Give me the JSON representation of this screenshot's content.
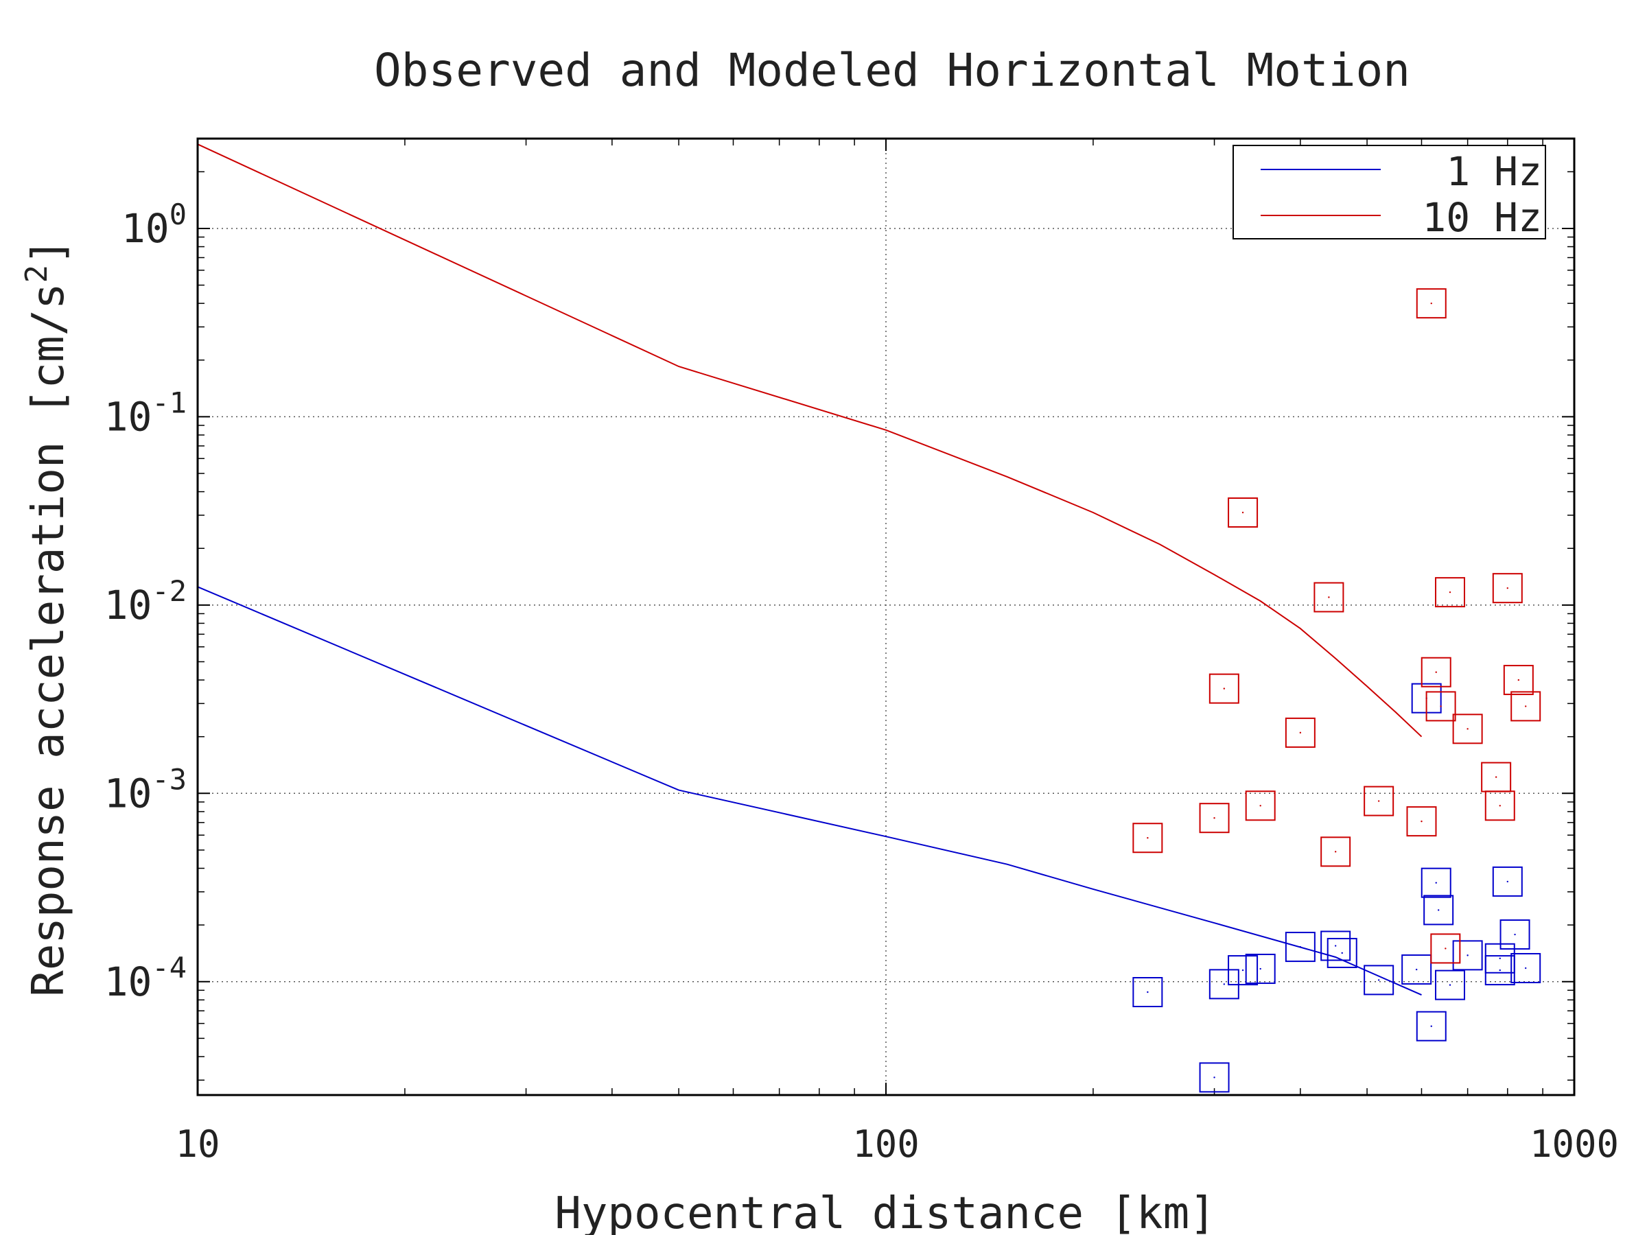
{
  "chart_data": {
    "type": "line",
    "title": "Observed and Modeled Horizontal Motion",
    "xlabel": "Hypocentral distance [km]",
    "ylabel": "Response acceleration [cm/s2]",
    "xscale": "log",
    "yscale": "log",
    "xlim": [
      10,
      1000
    ],
    "ylim": [
      2.5e-05,
      3
    ],
    "grid": true,
    "legend_position": "top-right",
    "x_ticks": [
      {
        "value": 10,
        "label": "10"
      },
      {
        "value": 100,
        "label": "100"
      },
      {
        "value": 1000,
        "label": "1000"
      }
    ],
    "y_ticks": [
      {
        "value": 1,
        "base": "10",
        "exp": "0"
      },
      {
        "value": 0.1,
        "base": "10",
        "exp": "-1"
      },
      {
        "value": 0.01,
        "base": "10",
        "exp": "-2"
      },
      {
        "value": 0.001,
        "base": "10",
        "exp": "-3"
      },
      {
        "value": 0.0001,
        "base": "10",
        "exp": "-4"
      }
    ],
    "series": [
      {
        "name": "1 Hz",
        "color": "#0000cc",
        "line": [
          [
            10,
            0.0125
          ],
          [
            50,
            0.00104
          ],
          [
            100,
            0.00059
          ],
          [
            150,
            0.00042
          ],
          [
            200,
            0.00031
          ],
          [
            300,
            0.000205
          ],
          [
            450,
            0.000135
          ],
          [
            600,
            8.5e-05
          ]
        ],
        "observations": [
          [
            240,
            8.8e-05
          ],
          [
            300,
            3.1e-05
          ],
          [
            310,
            9.7e-05
          ],
          [
            330,
            0.000115
          ],
          [
            350,
            0.000117
          ],
          [
            400,
            0.000153
          ],
          [
            450,
            0.000155
          ],
          [
            460,
            0.000142
          ],
          [
            520,
            0.000102
          ],
          [
            590,
            0.000116
          ],
          [
            610,
            0.0032
          ],
          [
            620,
            5.8e-05
          ],
          [
            630,
            0.000335
          ],
          [
            635,
            0.00024
          ],
          [
            660,
            9.6e-05
          ],
          [
            700,
            0.000138
          ],
          [
            780,
            0.000133
          ],
          [
            780,
            0.000115
          ],
          [
            800,
            0.00034
          ],
          [
            820,
            0.000178
          ],
          [
            850,
            0.000118
          ]
        ]
      },
      {
        "name": "10 Hz",
        "color": "#cc0000",
        "line": [
          [
            10,
            2.8
          ],
          [
            50,
            0.185
          ],
          [
            100,
            0.085
          ],
          [
            150,
            0.048
          ],
          [
            200,
            0.031
          ],
          [
            250,
            0.021
          ],
          [
            300,
            0.0145
          ],
          [
            350,
            0.0105
          ],
          [
            400,
            0.0075
          ],
          [
            450,
            0.0052
          ],
          [
            500,
            0.0037
          ],
          [
            550,
            0.0027
          ],
          [
            600,
            0.002
          ]
        ],
        "observations": [
          [
            240,
            0.00058
          ],
          [
            300,
            0.00074
          ],
          [
            310,
            0.0036
          ],
          [
            330,
            0.031
          ],
          [
            350,
            0.00086
          ],
          [
            400,
            0.0021
          ],
          [
            440,
            0.011
          ],
          [
            450,
            0.00049
          ],
          [
            520,
            0.00091
          ],
          [
            600,
            0.00071
          ],
          [
            620,
            0.4
          ],
          [
            630,
            0.0044
          ],
          [
            640,
            0.0029
          ],
          [
            650,
            0.00015
          ],
          [
            660,
            0.0117
          ],
          [
            700,
            0.0022
          ],
          [
            770,
            0.00122
          ],
          [
            780,
            0.00086
          ],
          [
            800,
            0.0123
          ],
          [
            830,
            0.004
          ],
          [
            850,
            0.0029
          ]
        ]
      }
    ]
  }
}
